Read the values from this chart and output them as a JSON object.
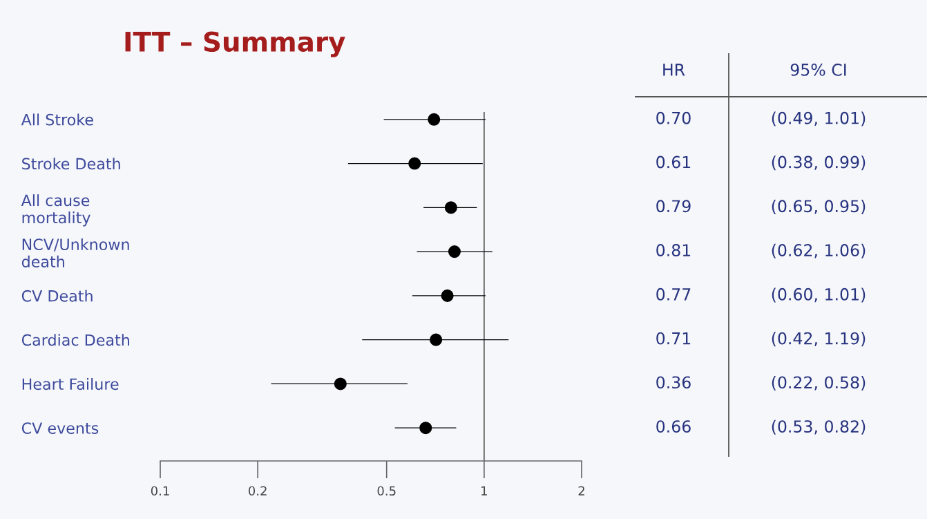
{
  "chart_data": {
    "type": "scatter",
    "orientation": "horizontal",
    "title": "ITT – Summary",
    "categories": [
      "All Stroke",
      "Stroke Death",
      "All cause\nmortality",
      "NCV/Unknown\ndeath",
      "CV Death",
      "Cardiac Death",
      "Heart Failure",
      "CV events"
    ],
    "values": [
      0.7,
      0.61,
      0.79,
      0.81,
      0.77,
      0.71,
      0.36,
      0.66
    ],
    "errors": [
      [
        0.49,
        1.01
      ],
      [
        0.38,
        0.99
      ],
      [
        0.65,
        0.95
      ],
      [
        0.62,
        1.06
      ],
      [
        0.6,
        1.01
      ],
      [
        0.42,
        1.19
      ],
      [
        0.22,
        0.58
      ],
      [
        0.53,
        0.82
      ]
    ],
    "value_labels": [
      "0.70",
      "0.61",
      "0.79",
      "0.81",
      "0.77",
      "0.71",
      "0.36",
      "0.66"
    ],
    "colors": [
      "#000000",
      "#000000",
      "#000000",
      "#000000",
      "#000000",
      "#000000",
      "#000000",
      "#000000"
    ],
    "log": "x",
    "xlim": [
      0.1,
      2
    ],
    "xticks": [
      0.1,
      0.2,
      0.5,
      1,
      2
    ],
    "ref_lines": [
      {
        "axis": "x",
        "value": 1,
        "color": "#555555"
      }
    ],
    "marker": "circle",
    "grid": false,
    "legend": false,
    "annotations": [
      "HR",
      "95% CI",
      "(0.49, 1.01)",
      "(0.38, 0.99)",
      "(0.65, 0.95)",
      "(0.62, 1.06)",
      "(0.60, 1.01)",
      "(0.42, 1.19)",
      "(0.22, 0.58)",
      "(0.53, 0.82)"
    ]
  }
}
